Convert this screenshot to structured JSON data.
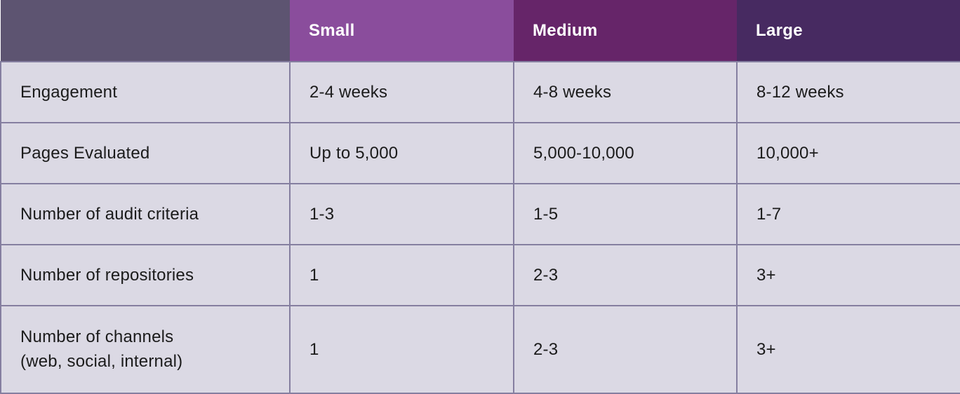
{
  "table": {
    "header": {
      "corner_label": "",
      "columns": [
        {
          "label": "Small"
        },
        {
          "label": "Medium"
        },
        {
          "label": "Large"
        }
      ]
    },
    "rows": [
      {
        "label": "Engagement",
        "values": [
          "2-4 weeks",
          "4-8 weeks",
          "8-12 weeks"
        ]
      },
      {
        "label": "Pages Evaluated",
        "values": [
          "Up to 5,000",
          "5,000-10,000",
          "10,000+"
        ]
      },
      {
        "label": "Number of audit criteria",
        "values": [
          "1-3",
          "1-5",
          "1-7"
        ]
      },
      {
        "label": "Number of repositories",
        "values": [
          "1",
          "2-3",
          "3+"
        ]
      },
      {
        "label_lines": [
          "Number of channels",
          "(web, social, internal)"
        ],
        "values": [
          "1",
          "2-3",
          "3+"
        ]
      }
    ],
    "colors": {
      "corner_header_bg": "#5d5471",
      "small_header_bg": "#8a4d9c",
      "medium_header_bg": "#662569",
      "large_header_bg": "#472a61",
      "body_cell_bg": "#dbd9e4",
      "cell_border": "#857fa0",
      "header_text": "#ffffff",
      "body_text": "#1b1b1b"
    }
  }
}
